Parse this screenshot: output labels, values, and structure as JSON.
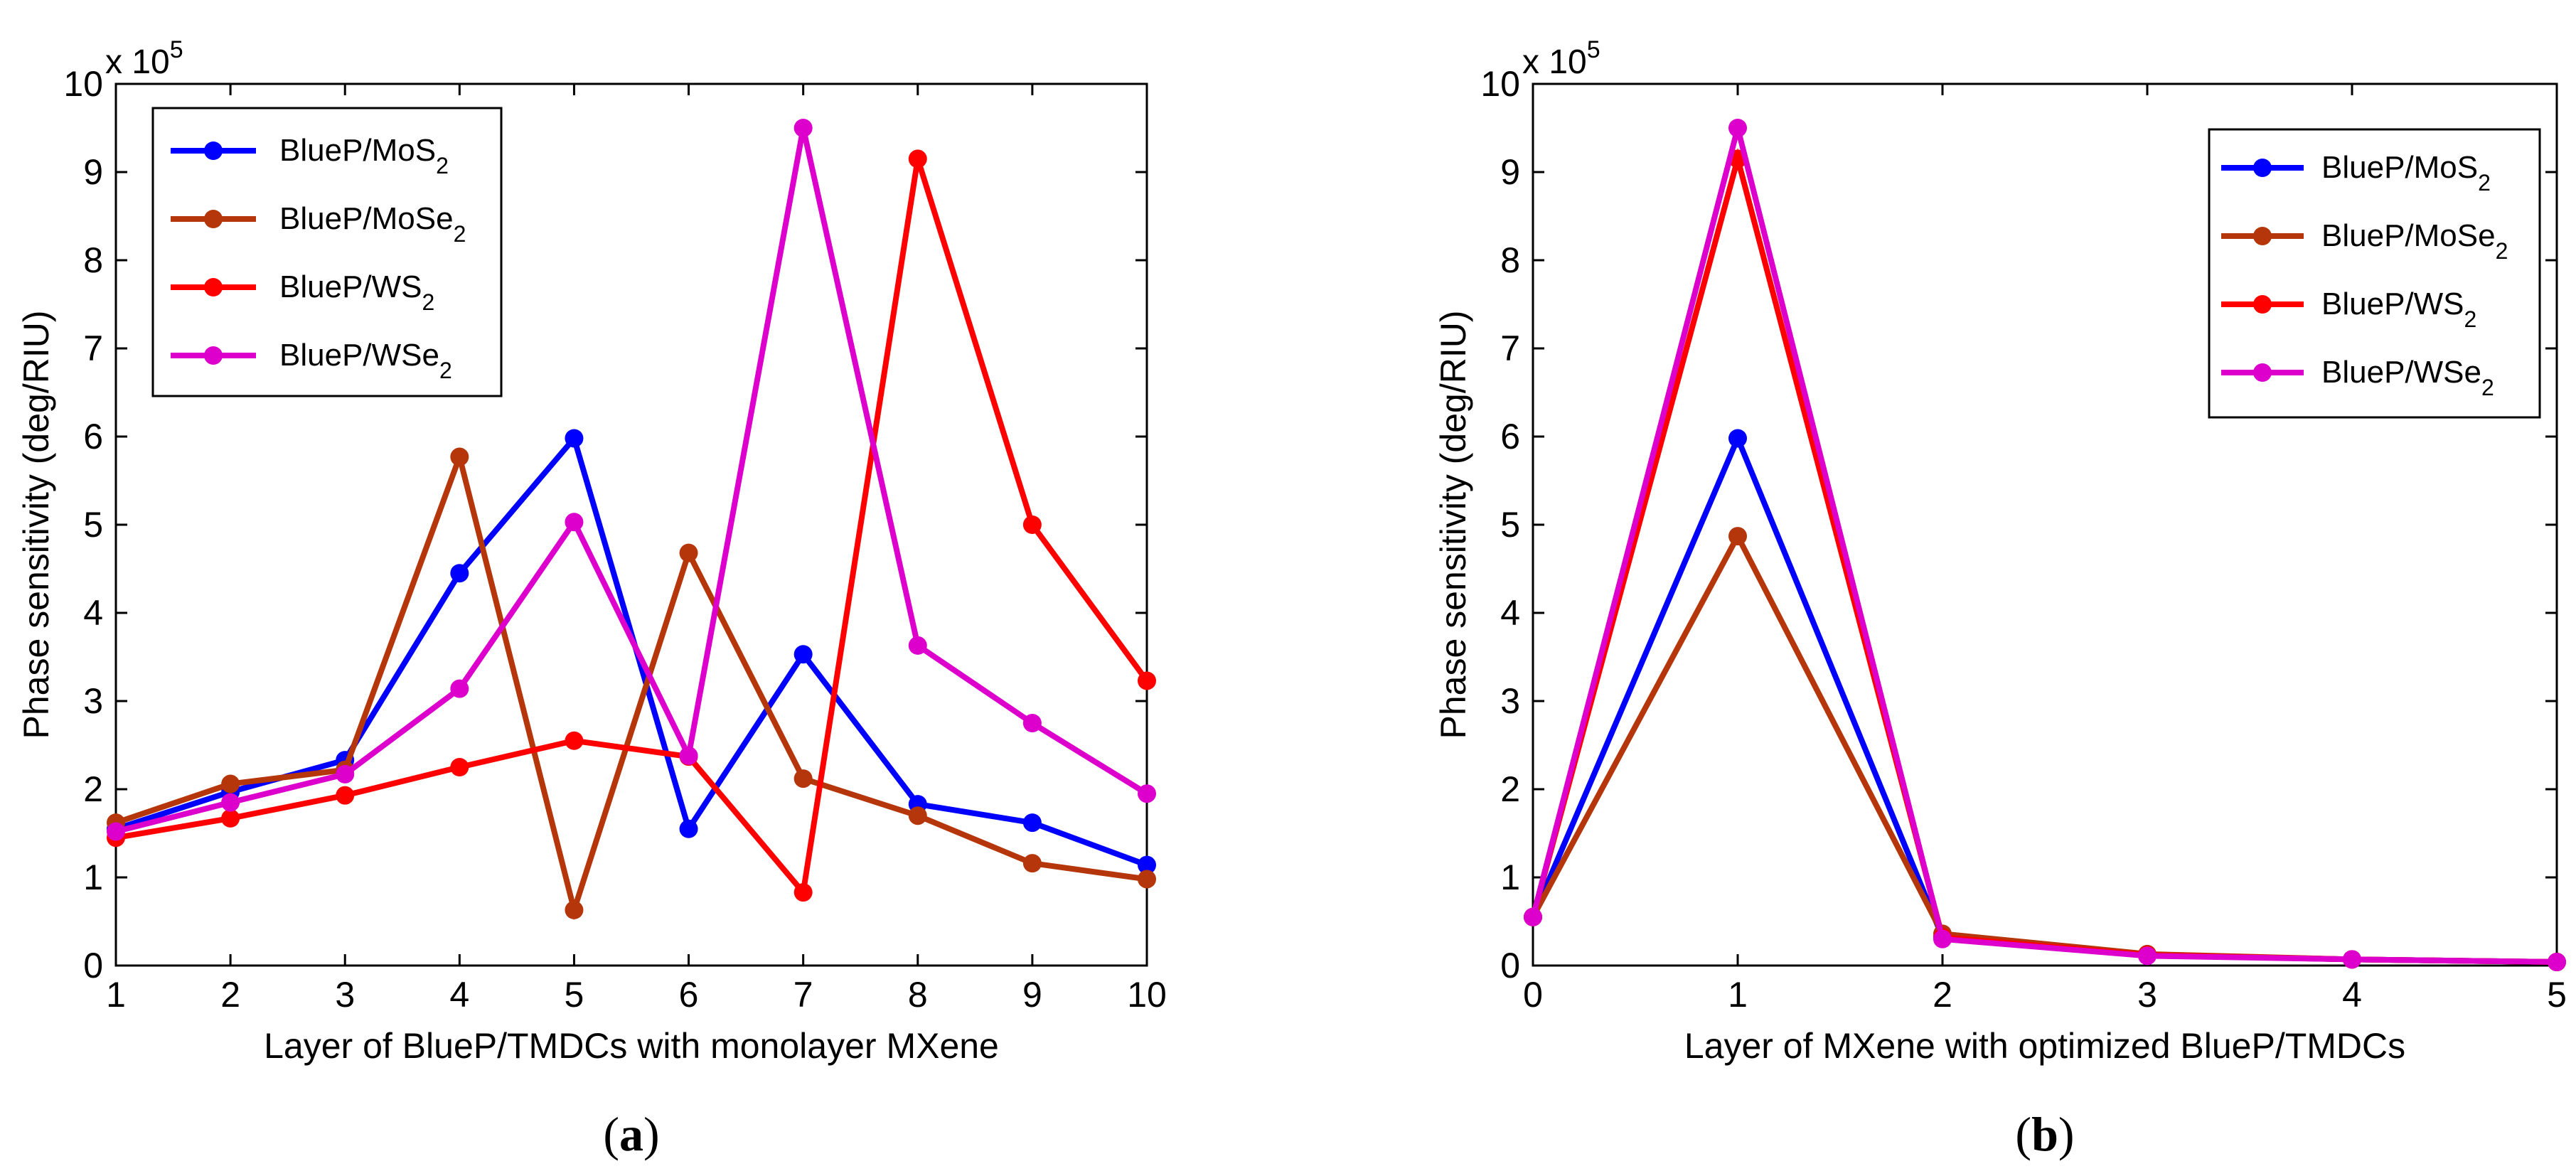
{
  "chart_data": [
    {
      "type": "line",
      "panel_caption": "(a)",
      "panel_letter": "a",
      "xlabel": "Layer of BlueP/TMDCs with monolayer MXene",
      "ylabel": "Phase sensitivity (deg/RIU)",
      "y_multiplier": {
        "base": "x 10",
        "exponent": "5"
      },
      "xlim": [
        1,
        10
      ],
      "ylim": [
        0,
        10
      ],
      "xticks": [
        1,
        2,
        3,
        4,
        5,
        6,
        7,
        8,
        9,
        10
      ],
      "yticks": [
        0,
        1,
        2,
        3,
        4,
        5,
        6,
        7,
        8,
        9,
        10
      ],
      "legend_position": "top-left",
      "x": [
        1,
        2,
        3,
        4,
        5,
        6,
        7,
        8,
        9,
        10
      ],
      "series": [
        {
          "name": "BlueP/MoS",
          "subscript": "2",
          "color": "#0000ff",
          "values": [
            1.55,
            1.97,
            2.33,
            4.45,
            5.98,
            1.55,
            3.53,
            1.83,
            1.62,
            1.14
          ]
        },
        {
          "name": "BlueP/MoSe",
          "subscript": "2",
          "color": "#b5360a",
          "values": [
            1.62,
            2.06,
            2.22,
            5.77,
            0.63,
            4.68,
            2.12,
            1.7,
            1.16,
            0.98
          ]
        },
        {
          "name": "BlueP/WS",
          "subscript": "2",
          "color": "#ff0000",
          "values": [
            1.45,
            1.67,
            1.93,
            2.25,
            2.55,
            2.37,
            0.83,
            9.15,
            5.0,
            3.23
          ]
        },
        {
          "name": "BlueP/WSe",
          "subscript": "2",
          "color": "#dd00cc",
          "values": [
            1.52,
            1.85,
            2.17,
            3.14,
            5.03,
            2.38,
            9.5,
            3.63,
            2.75,
            1.95
          ]
        }
      ]
    },
    {
      "type": "line",
      "panel_caption": "(b)",
      "panel_letter": "b",
      "xlabel": "Layer of MXene with optimized BlueP/TMDCs",
      "ylabel": "Phase sensitivity (deg/RIU)",
      "y_multiplier": {
        "base": "x 10",
        "exponent": "5"
      },
      "xlim": [
        0,
        5
      ],
      "ylim": [
        0,
        10
      ],
      "xticks": [
        0,
        1,
        2,
        3,
        4,
        5
      ],
      "yticks": [
        0,
        1,
        2,
        3,
        4,
        5,
        6,
        7,
        8,
        9,
        10
      ],
      "legend_position": "top-right",
      "x": [
        0,
        1,
        2,
        3,
        4,
        5
      ],
      "series": [
        {
          "name": "BlueP/MoS",
          "subscript": "2",
          "color": "#0000ff",
          "values": [
            0.55,
            5.98,
            0.32,
            0.12,
            0.07,
            0.04
          ]
        },
        {
          "name": "BlueP/MoSe",
          "subscript": "2",
          "color": "#b5360a",
          "values": [
            0.55,
            4.87,
            0.36,
            0.13,
            0.07,
            0.04
          ]
        },
        {
          "name": "BlueP/WS",
          "subscript": "2",
          "color": "#ff0000",
          "values": [
            0.55,
            9.15,
            0.32,
            0.12,
            0.07,
            0.04
          ]
        },
        {
          "name": "BlueP/WSe",
          "subscript": "2",
          "color": "#dd00cc",
          "values": [
            0.55,
            9.5,
            0.3,
            0.11,
            0.07,
            0.04
          ]
        }
      ]
    }
  ]
}
